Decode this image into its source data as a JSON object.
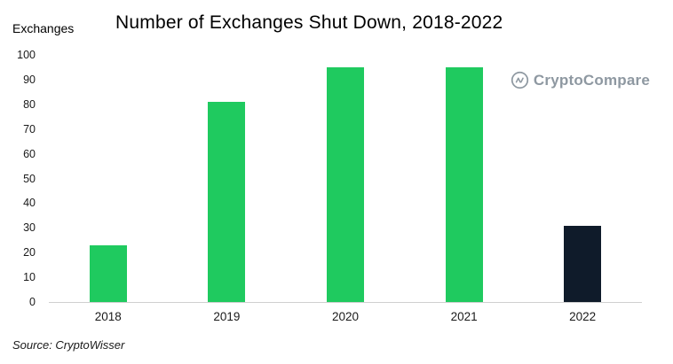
{
  "title": "Number of Exchanges Shut Down, 2018-2022",
  "y_axis_title": "Exchanges",
  "source": "Source: CryptoWisser",
  "logo": {
    "text": "CryptoCompare",
    "icon": "cryptocompare-circle-icon"
  },
  "colors": {
    "bar_green": "#1fca5f",
    "bar_dark": "#0f1b2a",
    "axis_line": "#cfcfcf",
    "logo_gray": "#8e98a1"
  },
  "chart_data": {
    "type": "bar",
    "title": "Number of Exchanges Shut Down, 2018-2022",
    "categories": [
      "2018",
      "2019",
      "2020",
      "2021",
      "2022"
    ],
    "values": [
      23,
      81,
      95,
      95,
      31
    ],
    "bar_colors": [
      "#1fca5f",
      "#1fca5f",
      "#1fca5f",
      "#1fca5f",
      "#0f1b2a"
    ],
    "xlabel": "",
    "ylabel": "Exchanges",
    "ylim": [
      0,
      100
    ],
    "ytick_step": 10,
    "grid": false,
    "legend": "none",
    "source": "Source: CryptoWisser"
  }
}
